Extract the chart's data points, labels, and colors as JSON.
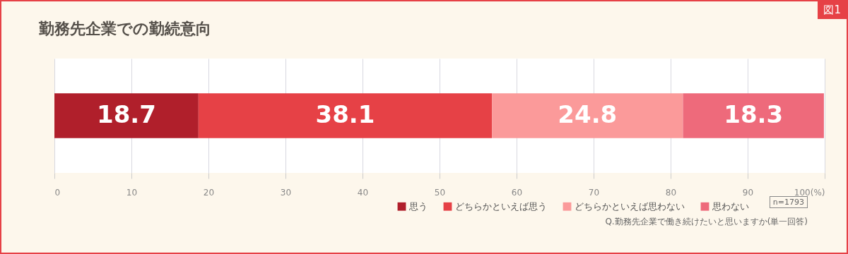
{
  "chart_data": {
    "type": "bar",
    "orientation": "horizontal",
    "stacked": true,
    "title": "勤務先企業での勤続意向",
    "categories": [
      null
    ],
    "series": [
      {
        "name": "思う",
        "color": "#b01f2b",
        "values": [
          18.7
        ]
      },
      {
        "name": "どちらかといえば思う",
        "color": "#e64146",
        "values": [
          38.1
        ]
      },
      {
        "name": "どちらかといえば思わない",
        "color": "#fb9a9a",
        "values": [
          24.8
        ]
      },
      {
        "name": "思わない",
        "color": "#ee6a7b",
        "values": [
          18.3
        ]
      }
    ],
    "xlim": [
      0,
      100
    ],
    "xticks": [
      0,
      10,
      20,
      30,
      40,
      50,
      60,
      70,
      80,
      90,
      {
        "value": 100,
        "label": "100(%)"
      }
    ],
    "grid": "x",
    "legend": "bottom right",
    "data_labels": true,
    "annotations": [
      "図1",
      "n=1793",
      "Q.勤務先企業で働き続けたいと思いますか(単一回答)"
    ]
  }
}
